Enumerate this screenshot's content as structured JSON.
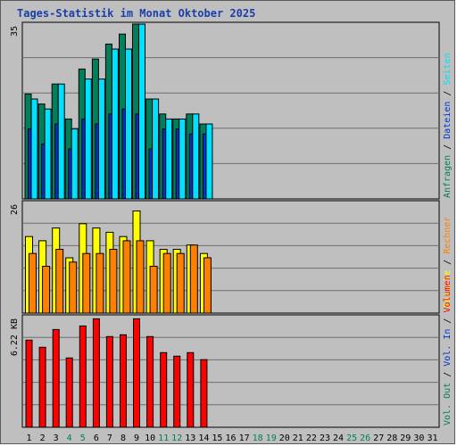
{
  "title": "Tages-Statistik im Monat Oktober 2025",
  "colors": {
    "background": "#bfbfbf",
    "anfragen": "#00805a",
    "dateien": "#0033cc",
    "seiten": "#00e0ff",
    "besuche": "#ffff00",
    "rechner": "#ff8000",
    "volumen": "#ff0000",
    "weekend_day": "#00805a",
    "weekday": "#000000"
  },
  "chart_data": [
    {
      "type": "bar",
      "panel": "top",
      "y_max_label": "35",
      "ylim": [
        0,
        35
      ],
      "x": [
        "1",
        "2",
        "3",
        "4",
        "5",
        "6",
        "7",
        "8",
        "9",
        "10",
        "11",
        "12",
        "13",
        "14",
        "15",
        "16",
        "17",
        "18",
        "19",
        "20",
        "21",
        "22",
        "23",
        "24",
        "25",
        "26",
        "27",
        "28",
        "29",
        "30",
        "31"
      ],
      "weekend_days": [
        "4",
        "5",
        "11",
        "12",
        "18",
        "19",
        "25",
        "26"
      ],
      "series": [
        {
          "name": "Anfragen",
          "color_key": "anfragen",
          "values": [
            21,
            19,
            23,
            16,
            26,
            28,
            31,
            33,
            35,
            20,
            17,
            16,
            17,
            15,
            null,
            null,
            null,
            null,
            null,
            null,
            null,
            null,
            null,
            null,
            null,
            null,
            null,
            null,
            null,
            null,
            null
          ]
        },
        {
          "name": "Dateien",
          "color_key": "dateien",
          "values": [
            14,
            11,
            15,
            10,
            16,
            15,
            17,
            18,
            17,
            10,
            14,
            14,
            13,
            13,
            null,
            null,
            null,
            null,
            null,
            null,
            null,
            null,
            null,
            null,
            null,
            null,
            null,
            null,
            null,
            null,
            null
          ]
        },
        {
          "name": "Seiten",
          "color_key": "seiten",
          "values": [
            20,
            18,
            23,
            14,
            24,
            24,
            30,
            30,
            35,
            20,
            16,
            16,
            17,
            15,
            null,
            null,
            null,
            null,
            null,
            null,
            null,
            null,
            null,
            null,
            null,
            null,
            null,
            null,
            null,
            null,
            null
          ]
        }
      ]
    },
    {
      "type": "bar",
      "panel": "middle",
      "y_max_label": "26",
      "ylim": [
        0,
        26
      ],
      "x": [
        "1",
        "2",
        "3",
        "4",
        "5",
        "6",
        "7",
        "8",
        "9",
        "10",
        "11",
        "12",
        "13",
        "14",
        "15",
        "16",
        "17",
        "18",
        "19",
        "20",
        "21",
        "22",
        "23",
        "24",
        "25",
        "26",
        "27",
        "28",
        "29",
        "30",
        "31"
      ],
      "series": [
        {
          "name": "Besuche",
          "color_key": "besuche",
          "values": [
            18,
            17,
            20,
            13,
            21,
            20,
            19,
            18,
            24,
            17,
            15,
            15,
            16,
            14,
            null,
            null,
            null,
            null,
            null,
            null,
            null,
            null,
            null,
            null,
            null,
            null,
            null,
            null,
            null,
            null,
            null
          ]
        },
        {
          "name": "Rechner",
          "color_key": "rechner",
          "values": [
            14,
            11,
            15,
            12,
            14,
            14,
            15,
            17,
            17,
            11,
            14,
            14,
            16,
            13,
            null,
            null,
            null,
            null,
            null,
            null,
            null,
            null,
            null,
            null,
            null,
            null,
            null,
            null,
            null,
            null,
            null
          ]
        }
      ]
    },
    {
      "type": "bar",
      "panel": "bottom",
      "y_max_label": "6.22 KB",
      "ylim": [
        0,
        6.22
      ],
      "x": [
        "1",
        "2",
        "3",
        "4",
        "5",
        "6",
        "7",
        "8",
        "9",
        "10",
        "11",
        "12",
        "13",
        "14",
        "15",
        "16",
        "17",
        "18",
        "19",
        "20",
        "21",
        "22",
        "23",
        "24",
        "25",
        "26",
        "27",
        "28",
        "29",
        "30",
        "31"
      ],
      "series": [
        {
          "name": "Volumen",
          "color_key": "volumen",
          "values": [
            4.9,
            4.5,
            5.5,
            3.9,
            5.7,
            6.1,
            5.1,
            5.2,
            6.1,
            5.1,
            4.2,
            4.0,
            4.2,
            3.8,
            null,
            null,
            null,
            null,
            null,
            null,
            null,
            null,
            null,
            null,
            null,
            null,
            null,
            null,
            null,
            null,
            null
          ]
        }
      ]
    }
  ],
  "legend": {
    "top": [
      {
        "label": "Anfragen",
        "color_key": "anfragen"
      },
      {
        "label": "Dateien",
        "color_key": "dateien"
      },
      {
        "label": "Seiten",
        "color_key": "seiten"
      }
    ],
    "middle": [
      {
        "label": "Besuche",
        "color_key": "besuche"
      },
      {
        "label": "Rechner",
        "color_key": "rechner"
      }
    ],
    "bottom": [
      {
        "label": "Vol. Out",
        "color_key": "anfragen"
      },
      {
        "label": "Vol. In",
        "color_key": "dateien"
      },
      {
        "label": "Volumen",
        "color_key": "volumen"
      }
    ],
    "separator": "/"
  }
}
